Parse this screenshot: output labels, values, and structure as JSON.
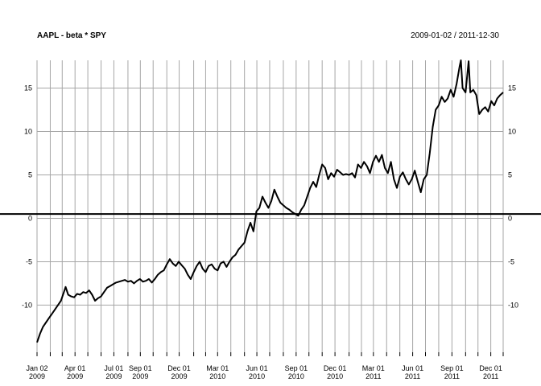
{
  "chart_data": {
    "type": "line",
    "title": "AAPL - beta * SPY",
    "date_range": "2009-01-02 / 2011-12-30",
    "x_ticks": [
      {
        "date": "2009-01-02",
        "line1": "Jan 02",
        "line2": "2009"
      },
      {
        "date": "2009-02-02",
        "line1": "",
        "line2": ""
      },
      {
        "date": "2009-03-02",
        "line1": "",
        "line2": ""
      },
      {
        "date": "2009-04-01",
        "line1": "Apr 01",
        "line2": "2009"
      },
      {
        "date": "2009-05-01",
        "line1": "",
        "line2": ""
      },
      {
        "date": "2009-06-01",
        "line1": "",
        "line2": ""
      },
      {
        "date": "2009-07-01",
        "line1": "Jul 01",
        "line2": "2009"
      },
      {
        "date": "2009-08-03",
        "line1": "",
        "line2": ""
      },
      {
        "date": "2009-09-01",
        "line1": "Sep 01",
        "line2": "2009"
      },
      {
        "date": "2009-10-01",
        "line1": "",
        "line2": ""
      },
      {
        "date": "2009-11-02",
        "line1": "",
        "line2": ""
      },
      {
        "date": "2009-12-01",
        "line1": "Dec 01",
        "line2": "2009"
      },
      {
        "date": "2010-01-04",
        "line1": "",
        "line2": ""
      },
      {
        "date": "2010-02-01",
        "line1": "",
        "line2": ""
      },
      {
        "date": "2010-03-01",
        "line1": "Mar 01",
        "line2": "2010"
      },
      {
        "date": "2010-04-01",
        "line1": "",
        "line2": ""
      },
      {
        "date": "2010-05-03",
        "line1": "",
        "line2": ""
      },
      {
        "date": "2010-06-01",
        "line1": "Jun 01",
        "line2": "2010"
      },
      {
        "date": "2010-07-01",
        "line1": "",
        "line2": ""
      },
      {
        "date": "2010-08-02",
        "line1": "",
        "line2": ""
      },
      {
        "date": "2010-09-01",
        "line1": "Sep 01",
        "line2": "2010"
      },
      {
        "date": "2010-10-01",
        "line1": "",
        "line2": ""
      },
      {
        "date": "2010-11-01",
        "line1": "",
        "line2": ""
      },
      {
        "date": "2010-12-01",
        "line1": "Dec 01",
        "line2": "2010"
      },
      {
        "date": "2011-01-03",
        "line1": "",
        "line2": ""
      },
      {
        "date": "2011-02-01",
        "line1": "",
        "line2": ""
      },
      {
        "date": "2011-03-01",
        "line1": "Mar 01",
        "line2": "2011"
      },
      {
        "date": "2011-04-01",
        "line1": "",
        "line2": ""
      },
      {
        "date": "2011-05-02",
        "line1": "",
        "line2": ""
      },
      {
        "date": "2011-06-01",
        "line1": "Jun 01",
        "line2": "2011"
      },
      {
        "date": "2011-07-01",
        "line1": "",
        "line2": ""
      },
      {
        "date": "2011-08-01",
        "line1": "",
        "line2": ""
      },
      {
        "date": "2011-09-01",
        "line1": "Sep 01",
        "line2": "2011"
      },
      {
        "date": "2011-10-03",
        "line1": "",
        "line2": ""
      },
      {
        "date": "2011-11-01",
        "line1": "",
        "line2": ""
      },
      {
        "date": "2011-12-01",
        "line1": "Dec 01",
        "line2": "2011"
      },
      {
        "date": "2011-12-30",
        "line1": "",
        "line2": ""
      }
    ],
    "y_ticks": [
      -10,
      -5,
      0,
      5,
      10,
      15
    ],
    "ylim": [
      -14.5,
      18.2
    ],
    "xlim": [
      "2009-01-02",
      "2011-12-30"
    ],
    "grid": true,
    "hline": 0.5,
    "series": [
      {
        "color": "#000000",
        "points": [
          [
            "2009-01-02",
            -14.3
          ],
          [
            "2009-01-09",
            -13.3
          ],
          [
            "2009-01-16",
            -12.5
          ],
          [
            "2009-01-23",
            -12.0
          ],
          [
            "2009-01-30",
            -11.5
          ],
          [
            "2009-02-06",
            -11.0
          ],
          [
            "2009-02-13",
            -10.5
          ],
          [
            "2009-02-20",
            -10.0
          ],
          [
            "2009-02-27",
            -9.5
          ],
          [
            "2009-03-06",
            -8.5
          ],
          [
            "2009-03-10",
            -7.9
          ],
          [
            "2009-03-16",
            -8.8
          ],
          [
            "2009-03-23",
            -9.0
          ],
          [
            "2009-03-30",
            -9.1
          ],
          [
            "2009-04-06",
            -8.7
          ],
          [
            "2009-04-13",
            -8.8
          ],
          [
            "2009-04-20",
            -8.5
          ],
          [
            "2009-04-27",
            -8.6
          ],
          [
            "2009-05-04",
            -8.3
          ],
          [
            "2009-05-11",
            -8.8
          ],
          [
            "2009-05-18",
            -9.5
          ],
          [
            "2009-05-25",
            -9.2
          ],
          [
            "2009-06-01",
            -9.0
          ],
          [
            "2009-06-08",
            -8.5
          ],
          [
            "2009-06-15",
            -8.0
          ],
          [
            "2009-06-22",
            -7.8
          ],
          [
            "2009-06-29",
            -7.6
          ],
          [
            "2009-07-06",
            -7.4
          ],
          [
            "2009-07-13",
            -7.3
          ],
          [
            "2009-07-20",
            -7.2
          ],
          [
            "2009-07-27",
            -7.1
          ],
          [
            "2009-08-03",
            -7.3
          ],
          [
            "2009-08-10",
            -7.2
          ],
          [
            "2009-08-17",
            -7.5
          ],
          [
            "2009-08-24",
            -7.2
          ],
          [
            "2009-08-31",
            -7.0
          ],
          [
            "2009-09-07",
            -7.3
          ],
          [
            "2009-09-14",
            -7.2
          ],
          [
            "2009-09-21",
            -7.0
          ],
          [
            "2009-09-28",
            -7.4
          ],
          [
            "2009-10-05",
            -7.0
          ],
          [
            "2009-10-12",
            -6.5
          ],
          [
            "2009-10-19",
            -6.2
          ],
          [
            "2009-10-26",
            -6.0
          ],
          [
            "2009-11-02",
            -5.3
          ],
          [
            "2009-11-09",
            -4.7
          ],
          [
            "2009-11-16",
            -5.2
          ],
          [
            "2009-11-23",
            -5.5
          ],
          [
            "2009-11-30",
            -5.0
          ],
          [
            "2009-12-07",
            -5.4
          ],
          [
            "2009-12-14",
            -5.8
          ],
          [
            "2009-12-21",
            -6.5
          ],
          [
            "2009-12-28",
            -7.0
          ],
          [
            "2010-01-04",
            -6.2
          ],
          [
            "2010-01-11",
            -5.5
          ],
          [
            "2010-01-18",
            -5.0
          ],
          [
            "2010-01-25",
            -5.8
          ],
          [
            "2010-02-01",
            -6.2
          ],
          [
            "2010-02-08",
            -5.5
          ],
          [
            "2010-02-15",
            -5.3
          ],
          [
            "2010-02-22",
            -5.8
          ],
          [
            "2010-03-01",
            -6.0
          ],
          [
            "2010-03-08",
            -5.2
          ],
          [
            "2010-03-15",
            -5.0
          ],
          [
            "2010-03-22",
            -5.6
          ],
          [
            "2010-03-29",
            -5.0
          ],
          [
            "2010-04-05",
            -4.5
          ],
          [
            "2010-04-12",
            -4.2
          ],
          [
            "2010-04-19",
            -3.6
          ],
          [
            "2010-04-26",
            -3.2
          ],
          [
            "2010-05-03",
            -2.8
          ],
          [
            "2010-05-10",
            -1.5
          ],
          [
            "2010-05-17",
            -0.5
          ],
          [
            "2010-05-24",
            -1.5
          ],
          [
            "2010-05-31",
            0.8
          ],
          [
            "2010-06-07",
            1.2
          ],
          [
            "2010-06-14",
            2.5
          ],
          [
            "2010-06-21",
            1.8
          ],
          [
            "2010-06-28",
            1.2
          ],
          [
            "2010-07-05",
            2.0
          ],
          [
            "2010-07-12",
            3.3
          ],
          [
            "2010-07-19",
            2.5
          ],
          [
            "2010-07-26",
            1.8
          ],
          [
            "2010-08-02",
            1.5
          ],
          [
            "2010-08-09",
            1.2
          ],
          [
            "2010-08-16",
            1.0
          ],
          [
            "2010-08-23",
            0.7
          ],
          [
            "2010-08-30",
            0.5
          ],
          [
            "2010-09-06",
            0.3
          ],
          [
            "2010-09-13",
            1.0
          ],
          [
            "2010-09-20",
            1.5
          ],
          [
            "2010-09-27",
            2.5
          ],
          [
            "2010-10-04",
            3.5
          ],
          [
            "2010-10-11",
            4.2
          ],
          [
            "2010-10-18",
            3.6
          ],
          [
            "2010-10-25",
            5.0
          ],
          [
            "2010-11-01",
            6.2
          ],
          [
            "2010-11-08",
            5.8
          ],
          [
            "2010-11-15",
            4.5
          ],
          [
            "2010-11-22",
            5.2
          ],
          [
            "2010-11-29",
            4.8
          ],
          [
            "2010-12-06",
            5.6
          ],
          [
            "2010-12-13",
            5.3
          ],
          [
            "2010-12-20",
            5.0
          ],
          [
            "2010-12-27",
            5.1
          ],
          [
            "2011-01-03",
            5.0
          ],
          [
            "2011-01-10",
            5.2
          ],
          [
            "2011-01-17",
            4.7
          ],
          [
            "2011-01-24",
            6.2
          ],
          [
            "2011-01-31",
            5.8
          ],
          [
            "2011-02-07",
            6.5
          ],
          [
            "2011-02-14",
            6.0
          ],
          [
            "2011-02-21",
            5.2
          ],
          [
            "2011-02-28",
            6.5
          ],
          [
            "2011-03-07",
            7.2
          ],
          [
            "2011-03-14",
            6.5
          ],
          [
            "2011-03-21",
            7.3
          ],
          [
            "2011-03-28",
            5.8
          ],
          [
            "2011-04-04",
            5.2
          ],
          [
            "2011-04-11",
            6.5
          ],
          [
            "2011-04-18",
            4.5
          ],
          [
            "2011-04-25",
            3.5
          ],
          [
            "2011-05-02",
            4.8
          ],
          [
            "2011-05-09",
            5.3
          ],
          [
            "2011-05-16",
            4.5
          ],
          [
            "2011-05-23",
            3.9
          ],
          [
            "2011-05-30",
            4.5
          ],
          [
            "2011-06-06",
            5.5
          ],
          [
            "2011-06-13",
            4.2
          ],
          [
            "2011-06-20",
            3.0
          ],
          [
            "2011-06-27",
            4.5
          ],
          [
            "2011-07-04",
            5.0
          ],
          [
            "2011-07-11",
            7.5
          ],
          [
            "2011-07-18",
            10.5
          ],
          [
            "2011-07-25",
            12.5
          ],
          [
            "2011-08-01",
            13.0
          ],
          [
            "2011-08-08",
            14.0
          ],
          [
            "2011-08-15",
            13.4
          ],
          [
            "2011-08-22",
            13.8
          ],
          [
            "2011-08-29",
            14.8
          ],
          [
            "2011-09-05",
            14.0
          ],
          [
            "2011-09-12",
            15.5
          ],
          [
            "2011-09-19",
            17.5
          ],
          [
            "2011-09-22",
            18.2
          ],
          [
            "2011-09-26",
            15.0
          ],
          [
            "2011-10-03",
            14.5
          ],
          [
            "2011-10-10",
            18.1
          ],
          [
            "2011-10-14",
            14.5
          ],
          [
            "2011-10-21",
            14.8
          ],
          [
            "2011-10-28",
            14.2
          ],
          [
            "2011-11-04",
            12.0
          ],
          [
            "2011-11-11",
            12.5
          ],
          [
            "2011-11-18",
            12.8
          ],
          [
            "2011-11-25",
            12.3
          ],
          [
            "2011-12-02",
            13.5
          ],
          [
            "2011-12-09",
            13.0
          ],
          [
            "2011-12-16",
            13.8
          ],
          [
            "2011-12-23",
            14.2
          ],
          [
            "2011-12-30",
            14.5
          ]
        ]
      }
    ]
  }
}
